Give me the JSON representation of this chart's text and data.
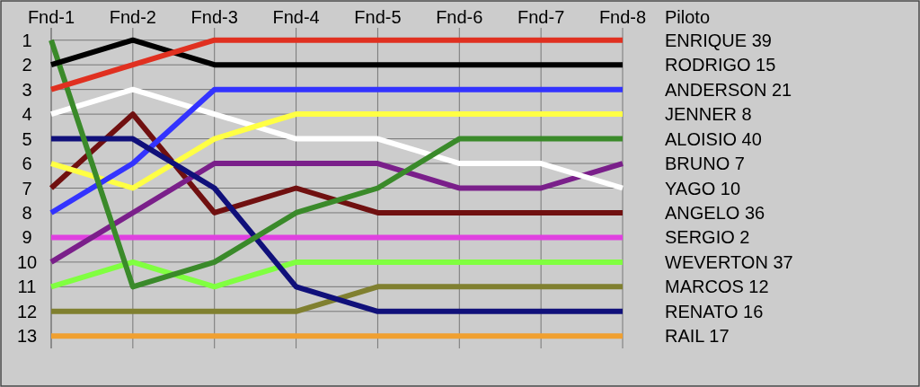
{
  "chart_data": {
    "type": "line",
    "legend_title": "Piloto",
    "categories": [
      "Fnd-1",
      "Fnd-2",
      "Fnd-3",
      "Fnd-4",
      "Fnd-5",
      "Fnd-6",
      "Fnd-7",
      "Fnd-8"
    ],
    "ylim": [
      13.5,
      0.5
    ],
    "yticks": [
      1,
      2,
      3,
      4,
      5,
      6,
      7,
      8,
      9,
      10,
      11,
      12,
      13
    ],
    "grid": true,
    "legend": "right",
    "marker": "none",
    "line_style": "solid",
    "series": [
      {
        "name": "RAIL 17",
        "color": "#f0a030",
        "values": [
          13,
          13,
          13,
          13,
          13,
          13,
          13,
          13
        ]
      },
      {
        "name": "MARCOS 12",
        "color": "#808030",
        "values": [
          12,
          12,
          12,
          12,
          11,
          11,
          11,
          11
        ]
      },
      {
        "name": "WEVERTON 37",
        "color": "#80ff40",
        "values": [
          11,
          10,
          11,
          10,
          10,
          10,
          10,
          10
        ]
      },
      {
        "name": "SERGIO 2",
        "color": "#e040e0",
        "values": [
          9,
          9,
          9,
          9,
          9,
          9,
          9,
          9
        ]
      },
      {
        "name": "ANGELO 36",
        "color": "#701010",
        "values": [
          7,
          4,
          8,
          7,
          8,
          8,
          8,
          8
        ]
      },
      {
        "name": "BRUNO 7",
        "color": "#7a1f8a",
        "values": [
          10,
          8,
          6,
          6,
          6,
          7,
          7,
          6
        ]
      },
      {
        "name": "YAGO 10",
        "color": "#ffffff",
        "values": [
          4,
          3,
          4,
          5,
          5,
          6,
          6,
          7
        ]
      },
      {
        "name": "JENNER 8",
        "color": "#ffff44",
        "values": [
          6,
          7,
          5,
          4,
          4,
          4,
          4,
          4
        ]
      },
      {
        "name": "ANDERSON 21",
        "color": "#3333ff",
        "values": [
          8,
          6,
          3,
          3,
          3,
          3,
          3,
          3
        ]
      },
      {
        "name": "RENATO 16",
        "color": "#10107a",
        "values": [
          5,
          5,
          7,
          11,
          12,
          12,
          12,
          12
        ]
      },
      {
        "name": "ALOISIO 40",
        "color": "#3a8a2a",
        "values": [
          1,
          11,
          10,
          8,
          7,
          5,
          5,
          5
        ]
      },
      {
        "name": "RODRIGO 15",
        "color": "#000000",
        "values": [
          2,
          1,
          2,
          2,
          2,
          2,
          2,
          2
        ]
      },
      {
        "name": "ENRIQUE 39",
        "color": "#e03020",
        "values": [
          3,
          2,
          1,
          1,
          1,
          1,
          1,
          1
        ]
      }
    ]
  }
}
